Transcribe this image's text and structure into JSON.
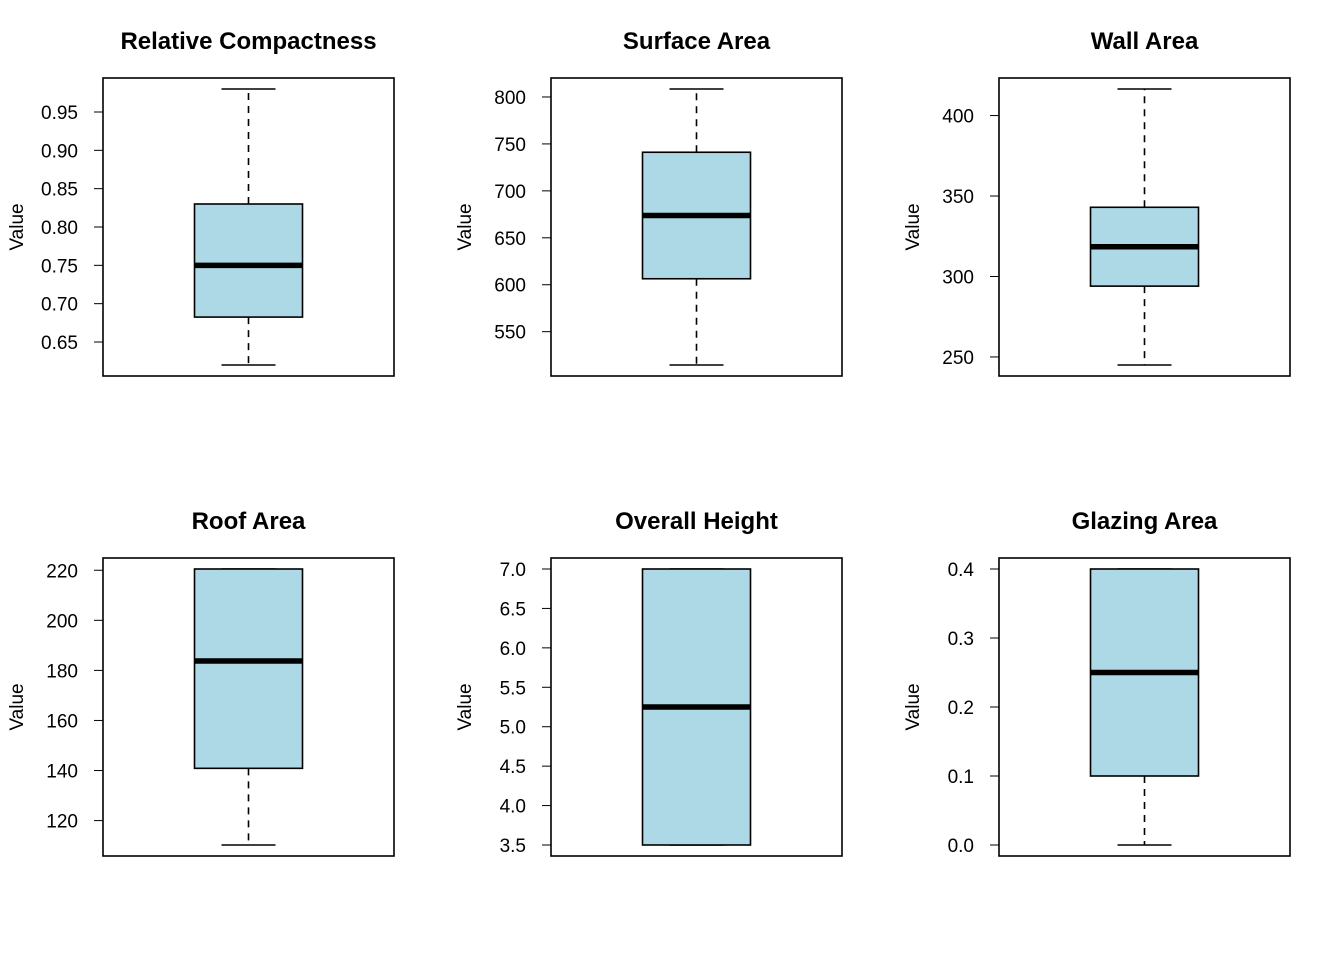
{
  "chart_data": [
    {
      "type": "boxplot",
      "title": "Relative Compactness",
      "ylabel": "Value",
      "ylim": [
        0.62,
        0.98
      ],
      "yticks": [
        "0.65",
        "0.70",
        "0.75",
        "0.80",
        "0.85",
        "0.90",
        "0.95"
      ],
      "stats": {
        "min": 0.62,
        "q1": 0.6825,
        "median": 0.75,
        "q3": 0.83,
        "max": 0.98
      },
      "box_color": "#ADD8E6"
    },
    {
      "type": "boxplot",
      "title": "Surface Area",
      "ylabel": "Value",
      "ylim": [
        514.5,
        808.5
      ],
      "yticks": [
        "550",
        "600",
        "650",
        "700",
        "750",
        "800"
      ],
      "stats": {
        "min": 514.5,
        "q1": 606.375,
        "median": 673.75,
        "q3": 741.125,
        "max": 808.5
      },
      "box_color": "#ADD8E6"
    },
    {
      "type": "boxplot",
      "title": "Wall Area",
      "ylabel": "Value",
      "ylim": [
        245,
        416.5
      ],
      "yticks": [
        "250",
        "300",
        "350",
        "400"
      ],
      "stats": {
        "min": 245,
        "q1": 294,
        "median": 318.5,
        "q3": 343,
        "max": 416.5
      },
      "box_color": "#ADD8E6"
    },
    {
      "type": "boxplot",
      "title": "Roof Area",
      "ylabel": "Value",
      "ylim": [
        110.25,
        220.5
      ],
      "yticks": [
        "120",
        "140",
        "160",
        "180",
        "200",
        "220"
      ],
      "stats": {
        "min": 110.25,
        "q1": 140.875,
        "median": 183.75,
        "q3": 220.5,
        "max": 220.5
      },
      "box_color": "#ADD8E6"
    },
    {
      "type": "boxplot",
      "title": "Overall Height",
      "ylabel": "Value",
      "ylim": [
        3.5,
        7.0
      ],
      "yticks": [
        "3.5",
        "4.0",
        "4.5",
        "5.0",
        "5.5",
        "6.0",
        "6.5",
        "7.0"
      ],
      "stats": {
        "min": 3.5,
        "q1": 3.5,
        "median": 5.25,
        "q3": 7.0,
        "max": 7.0
      },
      "box_color": "#ADD8E6"
    },
    {
      "type": "boxplot",
      "title": "Glazing Area",
      "ylabel": "Value",
      "ylim": [
        0.0,
        0.4
      ],
      "yticks": [
        "0.0",
        "0.1",
        "0.2",
        "0.3",
        "0.4"
      ],
      "stats": {
        "min": 0.0,
        "q1": 0.1,
        "median": 0.25,
        "q3": 0.4,
        "max": 0.4
      },
      "box_color": "#ADD8E6"
    }
  ]
}
